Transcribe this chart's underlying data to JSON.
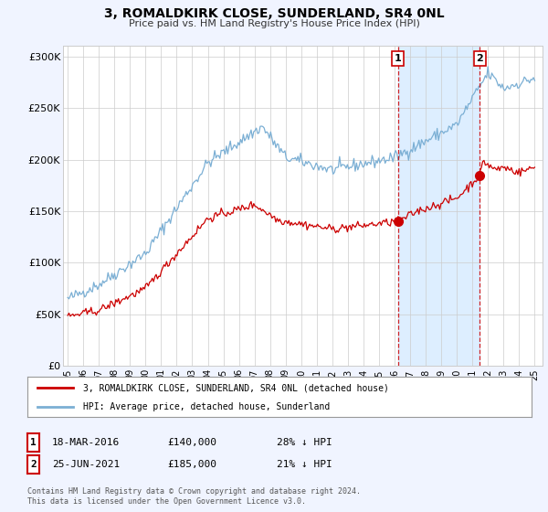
{
  "title": "3, ROMALDKIRK CLOSE, SUNDERLAND, SR4 0NL",
  "subtitle": "Price paid vs. HM Land Registry's House Price Index (HPI)",
  "background_color": "#f0f4ff",
  "plot_bg_color": "#ffffff",
  "shade_color": "#ddeeff",
  "ylim": [
    0,
    310000
  ],
  "yticks": [
    0,
    50000,
    100000,
    150000,
    200000,
    250000,
    300000
  ],
  "ytick_labels": [
    "£0",
    "£50K",
    "£100K",
    "£150K",
    "£200K",
    "£250K",
    "£300K"
  ],
  "hpi_color": "#7bafd4",
  "price_color": "#cc0000",
  "sale1_date": 2016.21,
  "sale1_price": 140000,
  "sale2_date": 2021.48,
  "sale2_price": 185000,
  "legend_line1": "3, ROMALDKIRK CLOSE, SUNDERLAND, SR4 0NL (detached house)",
  "legend_line2": "HPI: Average price, detached house, Sunderland",
  "note1_date": "18-MAR-2016",
  "note1_price": "£140,000",
  "note1_pct": "28% ↓ HPI",
  "note2_date": "25-JUN-2021",
  "note2_price": "£185,000",
  "note2_pct": "21% ↓ HPI",
  "footer": "Contains HM Land Registry data © Crown copyright and database right 2024.\nThis data is licensed under the Open Government Licence v3.0."
}
